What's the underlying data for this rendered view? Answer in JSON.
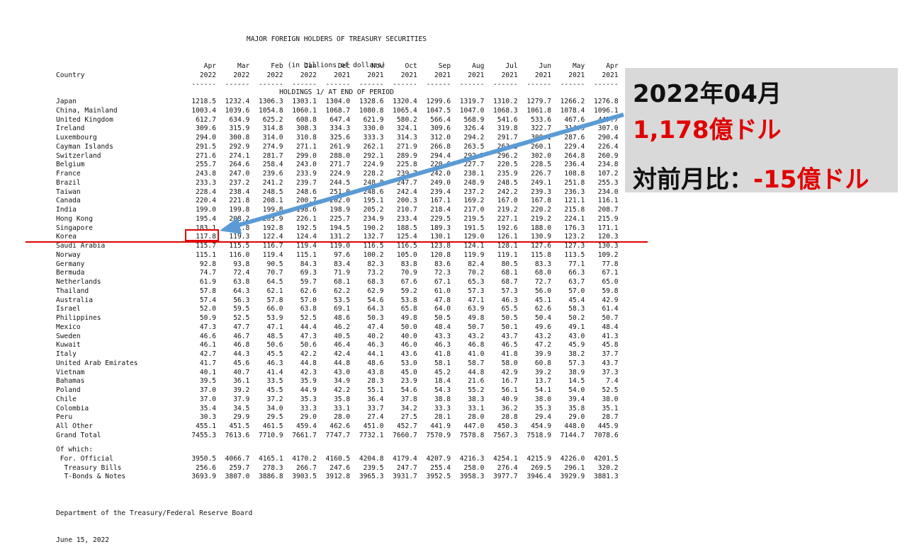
{
  "header": {
    "title": "MAJOR FOREIGN HOLDERS OF TREASURY SECURITIES",
    "subtitle": "(in billions of dollars)",
    "subtitle2": "HOLDINGS 1/ AT END OF PERIOD"
  },
  "columns": {
    "country_label": "Country",
    "months": [
      "Apr",
      "Mar",
      "Feb",
      "Jan",
      "Dec",
      "Nov",
      "Oct",
      "Sep",
      "Aug",
      "Jul",
      "Jun",
      "May",
      "Apr"
    ],
    "years": [
      "2022",
      "2022",
      "2022",
      "2022",
      "2021",
      "2021",
      "2021",
      "2021",
      "2021",
      "2021",
      "2021",
      "2021",
      "2021"
    ],
    "rule": "------"
  },
  "rows": [
    {
      "name": "Japan",
      "values": [
        "1218.5",
        "1232.4",
        "1306.3",
        "1303.1",
        "1304.0",
        "1328.6",
        "1320.4",
        "1299.6",
        "1319.7",
        "1310.2",
        "1279.7",
        "1266.2",
        "1276.8"
      ]
    },
    {
      "name": "China, Mainland",
      "values": [
        "1003.4",
        "1039.6",
        "1054.8",
        "1060.1",
        "1068.7",
        "1080.8",
        "1065.4",
        "1047.5",
        "1047.0",
        "1068.3",
        "1061.8",
        "1078.4",
        "1096.1"
      ]
    },
    {
      "name": "United Kingdom",
      "values": [
        "612.7",
        "634.9",
        "625.2",
        "608.8",
        "647.4",
        "621.9",
        "580.2",
        "566.4",
        "568.9",
        "541.6",
        "533.6",
        "467.6",
        "447.7"
      ]
    },
    {
      "name": "Ireland",
      "values": [
        "309.6",
        "315.9",
        "314.8",
        "308.3",
        "334.3",
        "330.0",
        "324.1",
        "309.6",
        "326.4",
        "319.8",
        "322.7",
        "314.9",
        "307.0"
      ]
    },
    {
      "name": "Luxembourg",
      "values": [
        "294.0",
        "300.8",
        "314.0",
        "310.8",
        "325.6",
        "333.3",
        "314.3",
        "312.0",
        "294.2",
        "291.7",
        "300.1",
        "287.6",
        "290.4"
      ]
    },
    {
      "name": "Cayman Islands",
      "values": [
        "291.5",
        "292.9",
        "274.9",
        "271.1",
        "261.9",
        "262.1",
        "271.9",
        "266.8",
        "263.5",
        "263.3",
        "260.1",
        "229.4",
        "226.4"
      ]
    },
    {
      "name": "Switzerland",
      "values": [
        "271.6",
        "274.1",
        "281.7",
        "299.0",
        "288.0",
        "292.1",
        "289.9",
        "294.4",
        "292.7",
        "296.2",
        "302.0",
        "264.8",
        "260.9"
      ]
    },
    {
      "name": "Belgium",
      "values": [
        "255.7",
        "264.6",
        "258.4",
        "243.0",
        "271.7",
        "224.9",
        "225.8",
        "220.6",
        "227.7",
        "220.5",
        "228.5",
        "236.4",
        "234.8"
      ]
    },
    {
      "name": "France",
      "values": [
        "243.8",
        "247.0",
        "239.6",
        "233.9",
        "224.9",
        "228.2",
        "239.7",
        "242.0",
        "238.1",
        "235.9",
        "226.7",
        "108.8",
        "107.2"
      ]
    },
    {
      "name": "Brazil",
      "values": [
        "233.3",
        "237.2",
        "241.2",
        "239.7",
        "244.5",
        "248.8",
        "247.7",
        "249.0",
        "248.9",
        "248.5",
        "249.1",
        "251.8",
        "255.3"
      ]
    },
    {
      "name": "Taiwan",
      "values": [
        "228.4",
        "238.4",
        "248.5",
        "248.6",
        "251.0",
        "248.6",
        "242.4",
        "239.4",
        "237.2",
        "242.2",
        "239.3",
        "236.3",
        "234.0"
      ]
    },
    {
      "name": "Canada",
      "values": [
        "220.4",
        "221.8",
        "208.1",
        "200.7",
        "202.0",
        "195.1",
        "200.3",
        "167.1",
        "169.2",
        "167.0",
        "167.8",
        "121.1",
        "116.1"
      ]
    },
    {
      "name": "India",
      "values": [
        "199.0",
        "199.8",
        "199.8",
        "198.6",
        "198.9",
        "205.2",
        "210.7",
        "218.4",
        "217.0",
        "219.2",
        "220.2",
        "215.8",
        "208.7"
      ]
    },
    {
      "name": "Hong Kong",
      "values": [
        "195.4",
        "208.2",
        "203.9",
        "226.1",
        "225.7",
        "234.9",
        "233.4",
        "229.5",
        "219.5",
        "227.1",
        "219.2",
        "224.1",
        "215.9"
      ]
    },
    {
      "name": "Singapore",
      "values": [
        "183.1",
        "181.8",
        "192.8",
        "192.5",
        "194.5",
        "190.2",
        "188.5",
        "189.3",
        "191.5",
        "192.6",
        "188.0",
        "176.3",
        "171.1"
      ]
    },
    {
      "name": "Korea",
      "values": [
        "117.8",
        "119.3",
        "122.4",
        "124.4",
        "131.2",
        "132.7",
        "125.4",
        "130.1",
        "129.0",
        "126.1",
        "130.9",
        "123.2",
        "120.3"
      ]
    },
    {
      "name": "Saudi Arabia",
      "values": [
        "115.7",
        "115.5",
        "116.7",
        "119.4",
        "119.0",
        "116.5",
        "116.5",
        "123.8",
        "124.1",
        "128.1",
        "127.6",
        "127.3",
        "130.3"
      ]
    },
    {
      "name": "Norway",
      "values": [
        "115.1",
        "116.0",
        "119.4",
        "115.1",
        "97.6",
        "100.2",
        "105.0",
        "120.8",
        "119.9",
        "119.1",
        "115.8",
        "113.5",
        "109.2"
      ]
    },
    {
      "name": "Germany",
      "values": [
        "92.8",
        "93.8",
        "90.5",
        "84.3",
        "83.4",
        "82.3",
        "83.8",
        "83.6",
        "82.4",
        "80.5",
        "83.3",
        "77.1",
        "77.8"
      ]
    },
    {
      "name": "Bermuda",
      "values": [
        "74.7",
        "72.4",
        "70.7",
        "69.3",
        "71.9",
        "73.2",
        "70.9",
        "72.3",
        "70.2",
        "68.1",
        "68.0",
        "66.3",
        "67.1"
      ]
    },
    {
      "name": "Netherlands",
      "values": [
        "61.9",
        "63.8",
        "64.5",
        "59.7",
        "68.1",
        "68.3",
        "67.6",
        "67.1",
        "65.3",
        "68.7",
        "72.7",
        "63.7",
        "65.0"
      ]
    },
    {
      "name": "Thailand",
      "values": [
        "57.8",
        "64.3",
        "62.1",
        "62.6",
        "62.2",
        "62.9",
        "59.2",
        "61.0",
        "57.3",
        "57.3",
        "56.0",
        "57.0",
        "59.8"
      ]
    },
    {
      "name": "Australia",
      "values": [
        "57.4",
        "56.3",
        "57.8",
        "57.0",
        "53.5",
        "54.6",
        "53.8",
        "47.8",
        "47.1",
        "46.3",
        "45.1",
        "45.4",
        "42.9"
      ]
    },
    {
      "name": "Israel",
      "values": [
        "52.0",
        "59.5",
        "66.0",
        "63.8",
        "69.1",
        "64.3",
        "65.8",
        "64.0",
        "63.9",
        "65.5",
        "62.6",
        "58.3",
        "61.4"
      ]
    },
    {
      "name": "Philippines",
      "values": [
        "50.9",
        "52.5",
        "53.9",
        "52.5",
        "48.6",
        "50.3",
        "49.8",
        "50.5",
        "49.8",
        "50.5",
        "50.4",
        "50.2",
        "50.7"
      ]
    },
    {
      "name": "Mexico",
      "values": [
        "47.3",
        "47.7",
        "47.1",
        "44.4",
        "46.2",
        "47.4",
        "50.0",
        "48.4",
        "50.7",
        "50.1",
        "49.6",
        "49.1",
        "48.4"
      ]
    },
    {
      "name": "Sweden",
      "values": [
        "46.6",
        "46.7",
        "48.5",
        "47.3",
        "40.5",
        "40.2",
        "40.0",
        "43.3",
        "43.2",
        "43.7",
        "43.2",
        "43.0",
        "41.3"
      ]
    },
    {
      "name": "Kuwait",
      "values": [
        "46.1",
        "46.8",
        "50.6",
        "50.6",
        "46.4",
        "46.3",
        "46.0",
        "46.3",
        "46.8",
        "46.5",
        "47.2",
        "45.9",
        "45.8"
      ]
    },
    {
      "name": "Italy",
      "values": [
        "42.7",
        "44.3",
        "45.5",
        "42.2",
        "42.4",
        "44.1",
        "43.6",
        "41.8",
        "41.0",
        "41.8",
        "39.9",
        "38.2",
        "37.7"
      ]
    },
    {
      "name": "United Arab Emirates",
      "values": [
        "41.7",
        "45.6",
        "46.3",
        "44.8",
        "44.8",
        "48.6",
        "53.0",
        "58.1",
        "58.7",
        "58.0",
        "60.8",
        "57.3",
        "43.7"
      ]
    },
    {
      "name": "Vietnam",
      "values": [
        "40.1",
        "40.7",
        "41.4",
        "42.3",
        "43.0",
        "43.8",
        "45.0",
        "45.2",
        "44.8",
        "42.9",
        "39.2",
        "38.9",
        "37.3"
      ]
    },
    {
      "name": "Bahamas",
      "values": [
        "39.5",
        "36.1",
        "33.5",
        "35.9",
        "34.9",
        "28.3",
        "23.9",
        "18.4",
        "21.6",
        "16.7",
        "13.7",
        "14.5",
        "7.4"
      ]
    },
    {
      "name": "Poland",
      "values": [
        "37.0",
        "39.2",
        "45.5",
        "44.9",
        "42.2",
        "55.1",
        "54.6",
        "54.3",
        "55.2",
        "56.1",
        "54.1",
        "54.0",
        "52.5"
      ]
    },
    {
      "name": "Chile",
      "values": [
        "37.0",
        "37.9",
        "37.2",
        "35.3",
        "35.8",
        "36.4",
        "37.8",
        "38.8",
        "38.3",
        "40.9",
        "38.0",
        "39.4",
        "38.0"
      ]
    },
    {
      "name": "Colombia",
      "values": [
        "35.4",
        "34.5",
        "34.0",
        "33.3",
        "33.1",
        "33.7",
        "34.2",
        "33.3",
        "33.1",
        "36.2",
        "35.3",
        "35.8",
        "35.1"
      ]
    },
    {
      "name": "Peru",
      "values": [
        "30.3",
        "29.9",
        "29.5",
        "29.0",
        "28.0",
        "27.4",
        "27.5",
        "28.1",
        "28.0",
        "28.8",
        "29.4",
        "29.0",
        "28.7"
      ]
    },
    {
      "name": "All Other",
      "values": [
        "455.1",
        "451.5",
        "461.5",
        "459.4",
        "462.6",
        "451.0",
        "452.7",
        "441.9",
        "447.0",
        "450.3",
        "454.9",
        "448.0",
        "445.9"
      ]
    },
    {
      "name": "Grand Total",
      "values": [
        "7455.3",
        "7613.6",
        "7710.9",
        "7661.7",
        "7747.7",
        "7732.1",
        "7660.7",
        "7570.9",
        "7578.8",
        "7567.3",
        "7518.9",
        "7144.7",
        "7078.6"
      ]
    }
  ],
  "of_which": {
    "label": "Of which:",
    "rows": [
      {
        "name": " For. Official",
        "values": [
          "3950.5",
          "4066.7",
          "4165.1",
          "4170.2",
          "4160.5",
          "4204.8",
          "4179.4",
          "4207.9",
          "4216.3",
          "4254.1",
          "4215.9",
          "4226.0",
          "4201.5"
        ]
      },
      {
        "name": "  Treasury Bills",
        "values": [
          "256.6",
          "259.7",
          "278.3",
          "266.7",
          "247.6",
          "239.5",
          "247.7",
          "255.4",
          "258.0",
          "276.4",
          "269.5",
          "296.1",
          "320.2"
        ]
      },
      {
        "name": "  T-Bonds & Notes",
        "values": [
          "3693.9",
          "3807.0",
          "3886.8",
          "3903.5",
          "3912.8",
          "3965.3",
          "3931.7",
          "3952.5",
          "3958.3",
          "3977.7",
          "3946.4",
          "3929.9",
          "3881.3"
        ]
      }
    ]
  },
  "footer": {
    "source": "Department of the Treasury/Federal Reserve Board",
    "date": "June 15, 2022"
  },
  "annotation": {
    "period": "2022年04月",
    "amount": "1,178億ドル",
    "change_label": "対前月比：",
    "change_value": "-15億ドル",
    "accent_color": "#e00000",
    "arrow_color": "#5b9bd5"
  }
}
